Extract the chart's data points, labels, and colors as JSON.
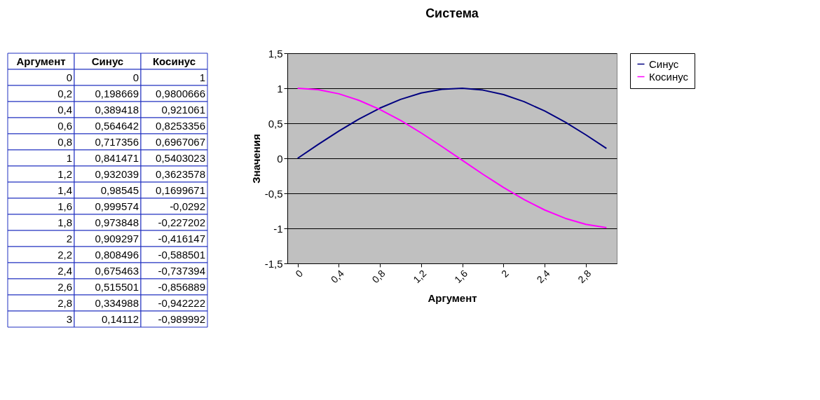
{
  "chart_data": {
    "type": "line",
    "title": "Система",
    "xlabel": "Аргумент",
    "ylabel": "Значения",
    "x": [
      0,
      0.2,
      0.4,
      0.6,
      0.8,
      1,
      1.2,
      1.4,
      1.6,
      1.8,
      2,
      2.2,
      2.4,
      2.6,
      2.8,
      3
    ],
    "xlim": [
      -0.1,
      3.1
    ],
    "xticks": [
      0,
      {
        "value": 0.4,
        "label": "0,4"
      },
      {
        "value": 0.8,
        "label": "0,8"
      },
      {
        "value": 1.2,
        "label": "1,2"
      },
      {
        "value": 1.6,
        "label": "1,6"
      },
      2,
      {
        "value": 2.4,
        "label": "2,4"
      },
      {
        "value": 2.8,
        "label": "2,8"
      }
    ],
    "series": [
      {
        "name": "Синус",
        "color": "#000080",
        "values": [
          0,
          0.198669,
          0.389418,
          0.564642,
          0.717356,
          0.841471,
          0.932039,
          0.98545,
          0.999574,
          0.973848,
          0.909297,
          0.808496,
          0.675463,
          0.515501,
          0.334988,
          0.14112
        ]
      },
      {
        "name": "Косинус",
        "color": "#ff00ff",
        "values": [
          1,
          0.9800666,
          0.921061,
          0.8253356,
          0.6967067,
          0.5403023,
          0.3623578,
          0.1699671,
          -0.0292,
          -0.227202,
          -0.416147,
          -0.588501,
          -0.737394,
          -0.856889,
          -0.942222,
          -0.989992
        ]
      }
    ],
    "ylim": [
      -1.5,
      1.5
    ],
    "yticks": [
      {
        "value": -1.5,
        "label": "-1,5"
      },
      -1,
      {
        "value": -0.5,
        "label": "-0,5"
      },
      0,
      {
        "value": 0.5,
        "label": "0,5"
      },
      1,
      {
        "value": 1.5,
        "label": "1,5"
      }
    ],
    "annotations": [
      "0",
      "0",
      "1",
      "0,2",
      "0,198669",
      "0,9800666",
      "0,4",
      "0,389418",
      "0,921061",
      "0,6",
      "0,564642",
      "0,8253356",
      "0,8",
      "0,717356",
      "0,6967067",
      "1",
      "0,841471",
      "0,5403023",
      "1,2",
      "0,932039",
      "0,3623578",
      "1,4",
      "0,98545",
      "0,1699671",
      "1,6",
      "0,999574",
      "-0,0292",
      "1,8",
      "0,973848",
      "-0,227202",
      "2",
      "0,909297",
      "-0,416147",
      "2,2",
      "0,808496",
      "-0,588501",
      "2,4",
      "0,675463",
      "-0,737394",
      "2,6",
      "0,515501",
      "-0,856889",
      "2,8",
      "0,334988",
      "-0,942222",
      "3",
      "0,14112",
      "-0,989992"
    ],
    "grid": "y",
    "legend": "right",
    "marker": "none",
    "line_style": "solid"
  }
}
